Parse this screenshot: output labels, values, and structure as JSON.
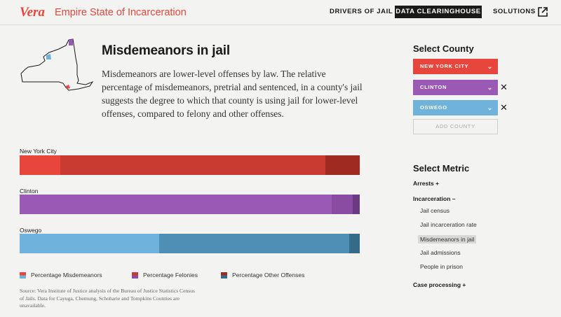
{
  "header": {
    "logo": "Vera",
    "site_title": "Empire State of Incarceration",
    "nav": [
      "DRIVERS OF JAIL",
      "DATA CLEARINGHOUSE",
      "SOLUTIONS"
    ]
  },
  "intro": {
    "title": "Misdemeanors in jail",
    "body": "Misdemeanors are lower-level offenses by law. The relative percentage of misdemeanors, pretrial and sentenced, in a county's jail suggests the degree to which that county is using jail for lower-level offenses, compared to felony and other offenses."
  },
  "chart_data": {
    "type": "bar",
    "orientation": "horizontal-stacked-100",
    "categories": [
      "New York City",
      "Clinton",
      "Oswego"
    ],
    "series": [
      {
        "name": "Percentage Misdemeanors",
        "values": [
          12,
          89,
          41
        ],
        "colors": [
          "#e8463c",
          "#9b59b6",
          "#6fb3dc"
        ]
      },
      {
        "name": "Percentage Felonies",
        "values": [
          78,
          6,
          56
        ],
        "colors": [
          "#c93a30",
          "#8a4ca3",
          "#4f8fb5"
        ]
      },
      {
        "name": "Percentage Other Offenses",
        "values": [
          10,
          2,
          3
        ],
        "colors": [
          "#9e2a22",
          "#6b3a80",
          "#356a88"
        ]
      }
    ]
  },
  "legend": [
    {
      "label": "Percentage Misdemeanors",
      "c1": "#e8463c",
      "c2": "#6fb3dc"
    },
    {
      "label": "Percentage Felonies",
      "c1": "#c93a30",
      "c2": "#8a4ca3"
    },
    {
      "label": "Percentage Other Offenses",
      "c1": "#9e2a22",
      "c2": "#356a88"
    }
  ],
  "source": "Source: Vera Institute of Justice analysis of the Bureau of Justice Statistics Census of Jails. Data for Cayuga, Chemung, Schoharie and Tompkins Counties are unavailable.",
  "panel": {
    "county_heading": "Select County",
    "counties": [
      {
        "label": "NEW YORK CITY",
        "color": "#e8463c",
        "removable": false
      },
      {
        "label": "CLINTON",
        "color": "#9b59b6",
        "removable": true
      },
      {
        "label": "OSWEGO",
        "color": "#6fb3dc",
        "removable": true
      }
    ],
    "add_county": "ADD COUNTY",
    "metric_heading": "Select Metric",
    "arrests": "Arrests +",
    "incarceration": "Incarceration –",
    "incarceration_items": [
      "Jail census",
      "Jail incarceration rate",
      "Misdemeanors in jail",
      "Jail admissions",
      "People in prison"
    ],
    "selected_metric": "Misdemeanors in jail",
    "case_processing": "Case processing +"
  },
  "colors": {
    "accent": "#e8463c",
    "dark": "#1a1a1a"
  }
}
